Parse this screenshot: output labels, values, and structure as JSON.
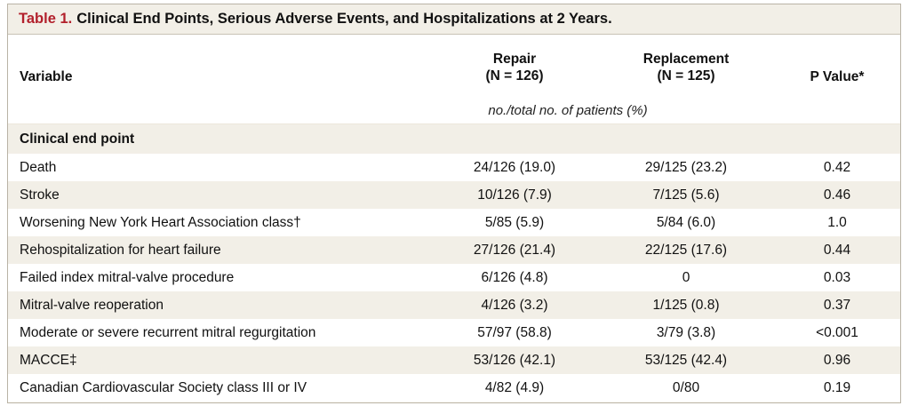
{
  "table": {
    "label": "Table 1.",
    "title": "Clinical End Points, Serious Adverse Events, and Hospitalizations at 2 Years.",
    "headers": {
      "variable": "Variable",
      "repair": [
        "Repair",
        "(N = 126)"
      ],
      "replacement": [
        "Replacement",
        "(N = 125)"
      ],
      "p_value": "P Value*"
    },
    "units": "no./total no. of patients (%)",
    "section": "Clinical end point",
    "rows": [
      {
        "variable": "Death",
        "repair": "24/126 (19.0)",
        "replacement": "29/125 (23.2)",
        "p": "0.42"
      },
      {
        "variable": "Stroke",
        "repair": "10/126 (7.9)",
        "replacement": "7/125 (5.6)",
        "p": "0.46"
      },
      {
        "variable": "Worsening New York Heart Association class†",
        "repair": "5/85 (5.9)",
        "replacement": "5/84 (6.0)",
        "p": "1.0"
      },
      {
        "variable": "Rehospitalization for heart failure",
        "repair": "27/126 (21.4)",
        "replacement": "22/125 (17.6)",
        "p": "0.44"
      },
      {
        "variable": "Failed index mitral-valve procedure",
        "repair": "6/126 (4.8)",
        "replacement": "0",
        "p": "0.03"
      },
      {
        "variable": "Mitral-valve reoperation",
        "repair": "4/126 (3.2)",
        "replacement": "1/125 (0.8)",
        "p": "0.37"
      },
      {
        "variable": "Moderate or severe recurrent mitral regurgitation",
        "repair": "57/97 (58.8)",
        "replacement": "3/79 (3.8)",
        "p": "<0.001"
      },
      {
        "variable": "MACCE‡",
        "repair": "53/126 (42.1)",
        "replacement": "53/125 (42.4)",
        "p": "0.96"
      },
      {
        "variable": "Canadian Cardiovascular Society class III or IV",
        "repair": "4/82 (4.9)",
        "replacement": "0/80",
        "p": "0.19"
      }
    ],
    "colors": {
      "accent": "#b2202c",
      "band": "#f2efe7"
    }
  }
}
